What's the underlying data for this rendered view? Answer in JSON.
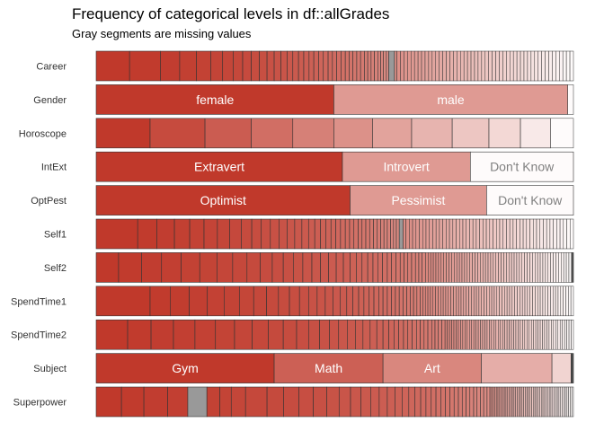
{
  "chart_data": {
    "type": "bar",
    "title": "Frequency of categorical levels in df::allGrades",
    "subtitle": "Gray segments are missing values",
    "colors": {
      "high": "#c0392b",
      "low": "#ffffff",
      "missing": "#999999",
      "border": "#333333"
    },
    "rows": [
      {
        "name": "Career",
        "labels": [],
        "fracs": [
          0.07,
          0.065,
          0.04,
          0.035,
          0.03,
          0.025,
          0.022,
          0.02,
          0.018,
          0.017,
          0.016,
          0.015,
          0.014,
          0.013,
          0.012,
          0.012,
          0.011,
          0.011,
          0.01,
          0.01,
          0.01,
          0.01,
          0.009,
          0.009,
          0.009,
          0.009,
          0.008,
          0.008,
          0.008,
          0.008,
          0.008,
          0.007,
          0.007,
          0.007,
          0.007,
          0.006,
          0.006,
          0.006,
          0.005,
          0.005
        ],
        "missing_index": 39,
        "missing_frac": 0.012,
        "tail_count": 50
      },
      {
        "name": "Gender",
        "labels": [
          "female",
          "male"
        ],
        "fracs": [
          0.498,
          0.49
        ],
        "tail_count": 1
      },
      {
        "name": "Horoscope",
        "labels": [],
        "fracs": [
          0.113,
          0.115,
          0.097,
          0.087,
          0.086,
          0.081,
          0.082,
          0.085,
          0.077,
          0.066,
          0.063
        ],
        "tail_count": 1
      },
      {
        "name": "IntExt",
        "labels": [
          "Extravert",
          "Introvert",
          "Don't Know"
        ],
        "fracs": [
          0.516,
          0.268,
          0.216
        ]
      },
      {
        "name": "OptPest",
        "labels": [
          "Optimist",
          "Pessimist",
          "Don't Know"
        ],
        "fracs": [
          0.532,
          0.286,
          0.182
        ]
      },
      {
        "name": "Self1",
        "labels": [],
        "fracs": [
          0.087,
          0.04,
          0.037,
          0.032,
          0.03,
          0.028,
          0.026,
          0.024,
          0.022,
          0.02,
          0.019,
          0.018,
          0.017,
          0.016,
          0.015,
          0.014,
          0.013,
          0.012,
          0.011,
          0.011,
          0.01,
          0.01,
          0.01,
          0.009,
          0.009,
          0.009,
          0.008,
          0.008,
          0.008,
          0.008,
          0.008,
          0.007,
          0.007,
          0.007,
          0.007,
          0.006,
          0.006,
          0.006,
          0.006
        ],
        "missing_index": 38,
        "missing_frac": 0.008,
        "tail_count": 50
      },
      {
        "name": "Self2",
        "labels": [],
        "fracs": [
          0.047,
          0.048,
          0.042,
          0.041,
          0.039,
          0.036,
          0.033,
          0.03,
          0.028,
          0.025,
          0.023,
          0.021,
          0.02,
          0.019,
          0.018,
          0.017,
          0.016,
          0.015,
          0.014,
          0.013,
          0.012,
          0.012,
          0.011,
          0.01,
          0.01,
          0.01,
          0.009,
          0.009,
          0.009,
          0.008,
          0.008,
          0.008,
          0.008,
          0.007,
          0.007,
          0.007
        ],
        "tail_count": 56,
        "end_missing_frac": 0.004
      },
      {
        "name": "SpendTime1",
        "labels": [],
        "fracs": [
          0.113,
          0.042,
          0.04,
          0.038,
          0.035,
          0.032,
          0.03,
          0.027,
          0.025,
          0.023,
          0.021,
          0.019,
          0.018,
          0.017,
          0.016,
          0.015,
          0.014,
          0.013,
          0.012,
          0.011,
          0.011,
          0.01,
          0.01,
          0.009,
          0.009,
          0.009,
          0.008,
          0.008,
          0.008,
          0.008,
          0.007,
          0.007,
          0.007,
          0.007
        ],
        "tail_count": 60
      },
      {
        "name": "SpendTime2",
        "labels": [],
        "fracs": [
          0.066,
          0.049,
          0.047,
          0.045,
          0.043,
          0.04,
          0.037,
          0.034,
          0.031,
          0.028,
          0.025,
          0.023,
          0.021,
          0.019,
          0.018,
          0.017,
          0.016,
          0.015,
          0.014,
          0.013,
          0.012,
          0.011,
          0.01,
          0.01,
          0.009,
          0.009,
          0.009,
          0.008,
          0.008,
          0.008,
          0.008,
          0.007,
          0.007,
          0.007,
          0.007
        ],
        "tail_count": 58
      },
      {
        "name": "Subject",
        "labels": [
          "Gym",
          "Math",
          "Art",
          "",
          ""
        ],
        "fracs": [
          0.373,
          0.228,
          0.206,
          0.148,
          0.04
        ],
        "tail_count": 1,
        "end_missing_frac": 0.004
      },
      {
        "name": "Superpower",
        "labels": [],
        "fracs": [
          0.053,
          0.047,
          0.05,
          0.042,
          0.027,
          0.024,
          0.03,
          0.045,
          0.035,
          0.032,
          0.03,
          0.028,
          0.026,
          0.024,
          0.022,
          0.02,
          0.018,
          0.017,
          0.016,
          0.015,
          0.014,
          0.013,
          0.012,
          0.011,
          0.011,
          0.01,
          0.01,
          0.01,
          0.009,
          0.009,
          0.009,
          0.008,
          0.008,
          0.008,
          0.008,
          0.007,
          0.007,
          0.007,
          0.007,
          0.006
        ],
        "missing_index": 4,
        "missing_frac": 0.04,
        "tail_count": 52
      }
    ]
  }
}
